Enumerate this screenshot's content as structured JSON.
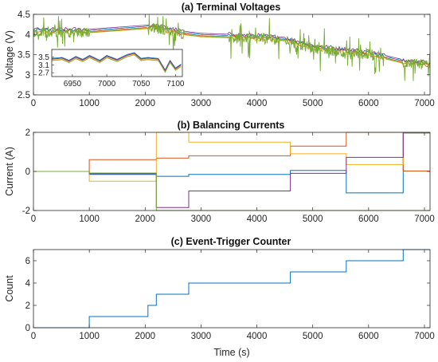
{
  "colors": {
    "blue": "#0072BD",
    "orange": "#D95319",
    "yellow": "#EDB120",
    "purple": "#7E2F8E",
    "green": "#77AC30",
    "cyan": "#4DBEEE",
    "axes": "#262626"
  },
  "chart_data": [
    {
      "id": "a",
      "type": "line",
      "title": "(a) Terminal Voltages",
      "xlabel": "",
      "ylabel": "Voltage (V)",
      "xlim": [
        0,
        7100
      ],
      "ylim": [
        2.5,
        4.5
      ],
      "xticks": [
        0,
        1000,
        2000,
        3000,
        4000,
        5000,
        6000,
        7000
      ],
      "yticks": [
        2.5,
        3,
        3.5,
        4,
        4.5
      ],
      "ytick_labels": [
        "2.5",
        "3",
        "3.5",
        "4",
        "4.5"
      ],
      "grid": false,
      "trend": {
        "x": [
          0,
          1000,
          2000,
          2200,
          2700,
          3000,
          4000,
          4500,
          5000,
          6000,
          6600,
          7000,
          7100
        ],
        "y": [
          4.05,
          4.05,
          4.15,
          4.15,
          4.0,
          3.95,
          3.9,
          3.85,
          3.65,
          3.5,
          3.3,
          3.25,
          3.2
        ]
      },
      "series": [
        {
          "color": "blue",
          "offset": 0.05
        },
        {
          "color": "orange",
          "offset": 0.02
        },
        {
          "color": "yellow",
          "offset": -0.01
        },
        {
          "color": "purple",
          "offset": 0.08
        },
        {
          "color": "green",
          "offset": 0.0,
          "noisy": true
        }
      ],
      "noisy_segments": [
        [
          0,
          1000
        ],
        [
          2050,
          2700
        ],
        [
          3500,
          4400
        ],
        [
          4500,
          6300
        ],
        [
          6600,
          7100
        ]
      ],
      "inset": {
        "xlim": [
          6920,
          7110
        ],
        "ylim": [
          2.5,
          3.9
        ],
        "xticks": [
          6950,
          7000,
          7050,
          7100
        ],
        "yticks": [
          2.7,
          3.1,
          3.5
        ],
        "ytick_labels": [
          "2.7",
          "3.1",
          "3.5"
        ]
      }
    },
    {
      "id": "b",
      "type": "line",
      "title": "(b) Balancing Currents",
      "xlabel": "",
      "ylabel": "Current (A)",
      "xlim": [
        0,
        7100
      ],
      "ylim": [
        -2,
        2
      ],
      "xticks": [
        0,
        1000,
        2000,
        3000,
        4000,
        5000,
        6000,
        7000
      ],
      "yticks": [
        -2,
        0,
        2
      ],
      "ytick_labels": [
        "-2",
        "0",
        "2"
      ],
      "grid": false,
      "series": [
        {
          "color": "blue",
          "x": [
            0,
            1000,
            1000,
            2200,
            2200,
            2780,
            2780,
            4600,
            4600,
            5600,
            5600,
            6620,
            6620,
            7100
          ],
          "y": [
            0,
            0,
            -0.15,
            -0.15,
            -0.25,
            -0.25,
            -0.15,
            -0.15,
            0.05,
            0.05,
            -1.1,
            -1.1,
            1.97,
            1.97
          ]
        },
        {
          "color": "orange",
          "x": [
            0,
            1000,
            1000,
            2200,
            2200,
            2780,
            2780,
            4600,
            4600,
            5600,
            5600,
            6620,
            6620,
            7100
          ],
          "y": [
            0,
            0,
            0.6,
            0.6,
            0.68,
            0.68,
            0.8,
            0.8,
            1.3,
            1.3,
            2.0,
            2.0,
            0.02,
            0.02
          ]
        },
        {
          "color": "yellow",
          "x": [
            0,
            1000,
            1000,
            2200,
            2200,
            2780,
            2780,
            4600,
            4600,
            5600,
            5600,
            6620,
            6620,
            7100
          ],
          "y": [
            0,
            0,
            -0.5,
            -0.5,
            2.0,
            2.0,
            1.5,
            1.5,
            0.9,
            0.9,
            0.35,
            0.35,
            1.95,
            1.95
          ]
        },
        {
          "color": "purple",
          "x": [
            0,
            1000,
            1000,
            2200,
            2200,
            2780,
            2780,
            4600,
            4600,
            5600,
            5600,
            6620,
            6620,
            7100
          ],
          "y": [
            0,
            0,
            -0.12,
            -0.12,
            -1.85,
            -1.85,
            -1.0,
            -1.0,
            -0.1,
            -0.1,
            0.72,
            0.72,
            2.0,
            2.0
          ]
        },
        {
          "color": "green",
          "x": [
            0,
            1000,
            1000,
            2200,
            2200,
            2780,
            2780,
            4600,
            4600,
            5600,
            5600,
            6620,
            6620,
            7100
          ],
          "y": [
            0,
            0,
            -0.08,
            -0.08,
            -2.0,
            -2.0,
            -2.0,
            -2.0,
            -2.0,
            -2.0,
            -2.0,
            -2.0,
            -2.0,
            -2.0
          ]
        }
      ]
    },
    {
      "id": "c",
      "type": "line",
      "title": "(c) Event-Trigger Counter",
      "xlabel": "Time (s)",
      "ylabel": "Count",
      "xlim": [
        0,
        7100
      ],
      "ylim": [
        0,
        7
      ],
      "xticks": [
        0,
        1000,
        2000,
        3000,
        4000,
        5000,
        6000,
        7000
      ],
      "yticks": [
        0,
        2,
        4,
        6
      ],
      "ytick_labels": [
        "0",
        "2",
        "4",
        "6"
      ],
      "grid": false,
      "series": [
        {
          "color": "blue",
          "x": [
            0,
            1000,
            1000,
            2050,
            2050,
            2200,
            2200,
            2780,
            2780,
            4600,
            4600,
            5600,
            5600,
            6620,
            6620,
            7100
          ],
          "y": [
            0,
            0,
            1,
            1,
            2,
            2,
            3,
            3,
            4,
            4,
            5,
            5,
            6,
            6,
            7,
            7
          ]
        }
      ]
    }
  ]
}
